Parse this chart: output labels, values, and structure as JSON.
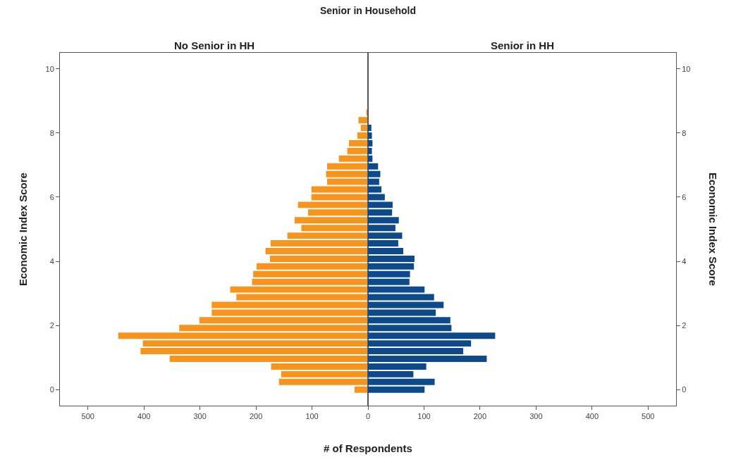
{
  "chart_data": [
    {
      "type": "bar",
      "orientation": "horizontal",
      "title": "Senior in Household",
      "subtitle": "No Senior in HH",
      "xlabel": "# of Respondents",
      "ylabel": "Economic Index Score",
      "color": "#f7941d",
      "x": [
        0,
        0.24,
        0.48,
        0.72,
        0.96,
        1.2,
        1.44,
        1.68,
        1.92,
        2.16,
        2.4,
        2.64,
        2.88,
        3.12,
        3.36,
        3.6,
        3.84,
        4.08,
        4.32,
        4.56,
        4.8,
        5.04,
        5.28,
        5.52,
        5.76,
        6,
        6.24,
        6.48,
        6.72,
        6.96,
        7.2,
        7.44,
        7.68,
        7.92,
        8.16,
        8.4,
        8.64
      ],
      "values": [
        24,
        159,
        155,
        173,
        354,
        406,
        402,
        446,
        337,
        301,
        279,
        279,
        235,
        246,
        207,
        205,
        199,
        175,
        183,
        174,
        144,
        119,
        131,
        107,
        125,
        101,
        101,
        73,
        75,
        73,
        52,
        37,
        34,
        19,
        13,
        17,
        3
      ],
      "xlim": [
        550,
        0
      ],
      "xticks": [
        500,
        400,
        300,
        200,
        100,
        {
          "value": 0,
          "label": null
        }
      ],
      "ylim": [
        -0.5,
        10.5
      ],
      "yticks": [
        0,
        2,
        4,
        6,
        8,
        10
      ]
    },
    {
      "type": "bar",
      "orientation": "horizontal",
      "subtitle": "Senior in HH",
      "ylabel": "Economic Index Score",
      "color": "#0d4a8c",
      "x": [
        0,
        0.24,
        0.48,
        0.72,
        0.96,
        1.2,
        1.44,
        1.68,
        1.92,
        2.16,
        2.4,
        2.64,
        2.88,
        3.12,
        3.36,
        3.6,
        3.84,
        4.08,
        4.32,
        4.56,
        4.8,
        5.04,
        5.28,
        5.52,
        5.76,
        6,
        6.24,
        6.48,
        6.72,
        6.96,
        7.2,
        7.44,
        7.68,
        7.92,
        8.16,
        8.4,
        8.64
      ],
      "values": [
        101,
        119,
        81,
        104,
        212,
        170,
        184,
        227,
        149,
        147,
        121,
        135,
        118,
        101,
        74,
        75,
        82,
        83,
        63,
        54,
        61,
        49,
        55,
        43,
        44,
        30,
        24,
        20,
        22,
        18,
        8,
        7,
        8,
        7,
        6,
        0,
        0
      ],
      "xlim": [
        0,
        550
      ],
      "xticks": [
        0,
        100,
        200,
        300,
        400,
        500
      ],
      "ylim": [
        -0.5,
        10.5
      ],
      "yticks": [
        0,
        2,
        4,
        6,
        8,
        10
      ]
    }
  ]
}
